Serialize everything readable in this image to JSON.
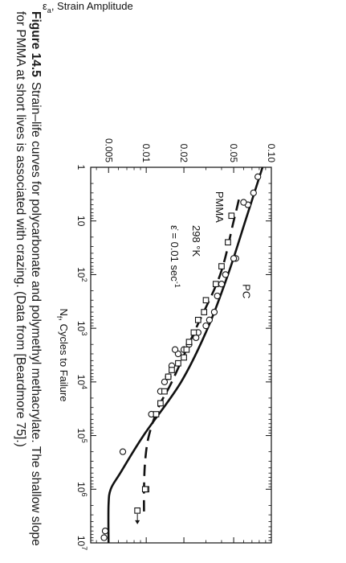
{
  "caption": {
    "figure_label": "Figure 14.5",
    "text": "Strain–life curves for polycarbonate and polymethyl methacrylate. The shallow slope for PMMA at short lives is associated with crazing. (Data from [Beardmore 75].)"
  },
  "chart_data": {
    "type": "scatter",
    "xlabel_symbol": "N",
    "xlabel_sub": "f",
    "xlabel_rest": ", Cycles to Failure",
    "ylabel_symbol": "ε",
    "ylabel_sub": "a",
    "ylabel_rest": ", Strain Amplitude",
    "x_scale": "log",
    "y_scale": "log",
    "xlim": [
      1,
      10000000
    ],
    "ylim": [
      0.0036,
      0.1
    ],
    "x_ticks": [
      {
        "v": 1,
        "base": "1",
        "exp": ""
      },
      {
        "v": 10,
        "base": "10",
        "exp": ""
      },
      {
        "v": 100,
        "base": "10",
        "exp": "2"
      },
      {
        "v": 1000,
        "base": "10",
        "exp": "3"
      },
      {
        "v": 10000,
        "base": "10",
        "exp": "4"
      },
      {
        "v": 100000,
        "base": "10",
        "exp": "5"
      },
      {
        "v": 1000000,
        "base": "10",
        "exp": "6"
      },
      {
        "v": 10000000,
        "base": "10",
        "exp": "7"
      }
    ],
    "y_ticks": [
      {
        "v": 0.005,
        "label": "0.005"
      },
      {
        "v": 0.01,
        "label": "0.01"
      },
      {
        "v": 0.02,
        "label": "0.02"
      },
      {
        "v": 0.05,
        "label": "0.05"
      },
      {
        "v": 0.1,
        "label": "0.10"
      }
    ],
    "annotations": {
      "temperature": "298 °K",
      "rate": "ε̇  = 0.01 sec",
      "rate_exp": "-1"
    },
    "series": [
      {
        "name": "PC",
        "marker": "circle",
        "line_style": "solid",
        "points": [
          [
            1.5,
            0.078
          ],
          [
            3,
            0.072
          ],
          [
            5,
            0.065
          ],
          [
            4.5,
            0.06
          ],
          [
            50,
            0.052
          ],
          [
            50,
            0.05
          ],
          [
            100,
            0.043
          ],
          [
            150,
            0.04
          ],
          [
            250,
            0.037
          ],
          [
            500,
            0.035
          ],
          [
            700,
            0.032
          ],
          [
            900,
            0.03
          ],
          [
            1200,
            0.026
          ],
          [
            1500,
            0.025
          ],
          [
            2000,
            0.022
          ],
          [
            2500,
            0.02
          ],
          [
            3000,
            0.018
          ],
          [
            2500,
            0.017
          ],
          [
            5000,
            0.016
          ],
          [
            8000,
            0.015
          ],
          [
            10000,
            0.014
          ],
          [
            15000,
            0.013
          ],
          [
            40000,
            0.011
          ],
          [
            200000,
            0.0065
          ],
          [
            6000000,
            0.0047
          ],
          [
            8000000,
            0.0046
          ]
        ],
        "curve": [
          [
            1,
            0.085
          ],
          [
            10,
            0.062
          ],
          [
            100,
            0.045
          ],
          [
            1000,
            0.031
          ],
          [
            10000,
            0.019
          ],
          [
            100000,
            0.0095
          ],
          [
            500000,
            0.0062
          ],
          [
            1000000,
            0.0052
          ],
          [
            2000000,
            0.005
          ],
          [
            10000000,
            0.005
          ]
        ]
      },
      {
        "name": "PMMA",
        "marker": "square",
        "line_style": "dashed",
        "points": [
          [
            8,
            0.048
          ],
          [
            25,
            0.045
          ],
          [
            70,
            0.04
          ],
          [
            150,
            0.036
          ],
          [
            300,
            0.03
          ],
          [
            500,
            0.029
          ],
          [
            700,
            0.026
          ],
          [
            1200,
            0.024
          ],
          [
            1800,
            0.022
          ],
          [
            2500,
            0.021
          ],
          [
            3500,
            0.02
          ],
          [
            4500,
            0.018
          ],
          [
            6000,
            0.016
          ],
          [
            8000,
            0.015
          ],
          [
            15000,
            0.014
          ],
          [
            25000,
            0.013
          ],
          [
            40000,
            0.012
          ],
          [
            1000000,
            0.01
          ],
          [
            1000000,
            0.0098
          ],
          [
            2500000,
            0.0085
          ]
        ],
        "arrow_point": [
          2500000,
          0.0085
        ],
        "curve": [
          [
            4,
            0.055
          ],
          [
            10,
            0.05
          ],
          [
            100,
            0.039
          ],
          [
            1000,
            0.025
          ],
          [
            10000,
            0.016
          ],
          [
            30000,
            0.0125
          ],
          [
            100000,
            0.0105
          ],
          [
            300000,
            0.0098
          ],
          [
            1000000,
            0.0096
          ],
          [
            3000000,
            0.0096
          ]
        ]
      }
    ]
  }
}
